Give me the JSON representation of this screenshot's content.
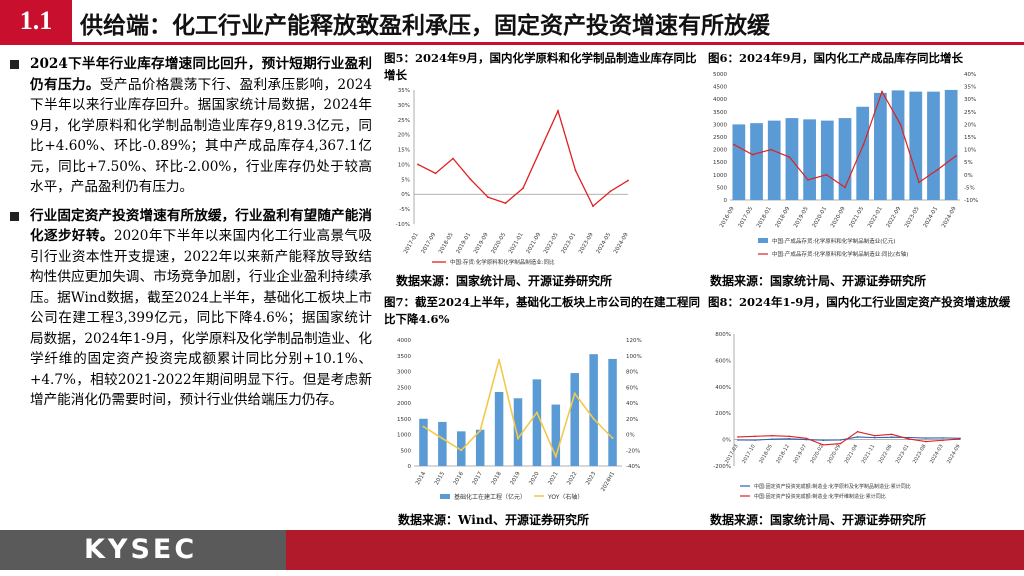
{
  "header": {
    "section_number": "1.1",
    "title": "供给端：化工行业产能释放致盈利承压，固定资产投资增速有所放缓"
  },
  "left_text": {
    "p1_bold": "2024下半年行业库存增速同比回升，预计短期行业盈利仍有压力。",
    "p1_rest": "受产品价格震荡下行、盈利承压影响，2024下半年以来行业库存回升。据国家统计局数据，2024年9月，化学原料和化学制品制造业库存9,819.3亿元，同比+4.60%、环比-0.89%；其中产成品库存4,367.1亿元，同比+7.50%、环比-2.00%，行业库存仍处于较高水平，产品盈利仍有压力。",
    "p2_bold": "行业固定资产投资增速有所放缓，行业盈利有望随产能消化逐步好转。",
    "p2_rest": "2020年下半年以来国内化工行业高景气吸引行业资本性开支提速，2022年以来新产能释放导致结构性供应更加失调、市场竞争加剧，行业企业盈利持续承压。据Wind数据，截至2024上半年，基础化工板块上市公司在建工程3,399亿元，同比下降4.6%；据国家统计局数据，2024年1-9月，化学原料及化学制品制造业、化学纤维的固定资产投资完成额累计同比分别+10.1%、+4.7%，相较2021-2022年期间明显下行。但是考虑新增产能消化仍需要时间，预计行业供给端压力仍存。"
  },
  "figures": {
    "fig5": {
      "title": "图5：2024年9月，国内化学原料和化学制品制造业库存同比增长",
      "source": "数据来源：国家统计局、开源证券研究所",
      "legend": "中国:存货:化学原料和化学制品制造业:同比"
    },
    "fig6": {
      "title": "图6：2024年9月，国内化工产成品库存同比增长",
      "source": "数据来源：国家统计局、开源证券研究所",
      "legend_bar": "中国:产成品存货:化学原料和化学制品制造业(亿元)",
      "legend_line": "中国:产成品存货:化学原料和化学制品制造业:同比(右轴)"
    },
    "fig7": {
      "title": "图7：截至2024上半年，基础化工板块上市公司的在建工程同比下降4.6%",
      "source": "数据来源：Wind、开源证券研究所",
      "legend_bar": "基础化工在建工程（亿元）",
      "legend_line": "YOY（右轴）"
    },
    "fig8": {
      "title": "图8：2024年1-9月，国内化工行业固定资产投资增速放缓",
      "source": "数据来源：国家统计局、开源证券研究所",
      "legend_a": "中国:固定资产投资完成额:制造业:化学原料及化学制品制造业:累计同比",
      "legend_b": "中国:固定资产投资完成额:制造业:化学纤维制造业:累计同比"
    }
  },
  "chart_data": [
    {
      "id": "fig5",
      "type": "line",
      "x": [
        "2017-01",
        "2017-09",
        "2018-05",
        "2019-01",
        "2019-09",
        "2020-05",
        "2021-01",
        "2021-09",
        "2022-05",
        "2023-01",
        "2023-09",
        "2024-05",
        "2024-09"
      ],
      "series": [
        {
          "name": "中国:存货:化学原料和化学制品制造业:同比",
          "values": [
            10,
            7,
            12,
            5,
            -1,
            -3,
            2,
            15,
            28,
            8,
            -4,
            1,
            4.6
          ]
        }
      ],
      "ylim": [
        -10,
        35
      ],
      "yticks": [
        "-10%",
        "-5%",
        "0%",
        "5%",
        "10%",
        "15%",
        "20%",
        "25%",
        "30%",
        "35%"
      ],
      "xticks": [
        "2017-01",
        "2017-09",
        "2018-05",
        "2019-01",
        "2019-09",
        "2020-05",
        "2021-01",
        "2021-09",
        "2022-05",
        "2023-01",
        "2023-09",
        "2024-05",
        "2024-09"
      ]
    },
    {
      "id": "fig6",
      "type": "bar",
      "x": [
        "2016-09",
        "2017-05",
        "2018-01",
        "2018-09",
        "2019-05",
        "2020-01",
        "2020-09",
        "2021-05",
        "2022-01",
        "2022-09",
        "2023-05",
        "2024-01",
        "2024-09"
      ],
      "series": [
        {
          "name": "中国:产成品存货:化学原料和化学制品制造业(亿元)",
          "values": [
            3000,
            3050,
            3150,
            3250,
            3200,
            3150,
            3250,
            3700,
            4250,
            4350,
            4300,
            4300,
            4367.1
          ]
        },
        {
          "name": "中国:产成品存货:化学原料和化学制品制造业:同比(右轴)",
          "values": [
            12,
            8,
            10,
            7,
            -2,
            0,
            -5,
            12,
            33,
            20,
            -3,
            2,
            7.5
          ]
        }
      ],
      "ylim": [
        0,
        5000
      ],
      "y2lim": [
        -10,
        40
      ],
      "yticks": [
        "0",
        "500",
        "1000",
        "1500",
        "2000",
        "2500",
        "3000",
        "3500",
        "4000",
        "4500",
        "5000"
      ],
      "y2ticks": [
        "-10%",
        "-5%",
        "0%",
        "5%",
        "10%",
        "15%",
        "20%",
        "25%",
        "30%",
        "35%",
        "40%"
      ],
      "xticks": [
        "2016-09",
        "2017-05",
        "2018-01",
        "2018-09",
        "2019-05",
        "2020-01",
        "2020-09",
        "2021-05",
        "2022-01",
        "2022-09",
        "2023-05",
        "2024-01",
        "2024-09"
      ]
    },
    {
      "id": "fig7",
      "type": "bar",
      "categories": [
        "2014",
        "2015",
        "2016",
        "2017",
        "2018",
        "2019",
        "2020",
        "2021",
        "2022",
        "2023",
        "2024H1"
      ],
      "series": [
        {
          "name": "基础化工在建工程（亿元）",
          "values": [
            1500,
            1400,
            1100,
            1150,
            2350,
            2150,
            2750,
            1950,
            2950,
            3550,
            3399
          ]
        },
        {
          "name": "YOY（右轴）",
          "values": [
            10,
            -5,
            -20,
            5,
            95,
            -5,
            28,
            -28,
            52,
            20,
            -4.6
          ]
        }
      ],
      "ylim": [
        0,
        4000
      ],
      "y2lim": [
        -40,
        120
      ],
      "yticks": [
        "0",
        "500",
        "1000",
        "1500",
        "2000",
        "2500",
        "3000",
        "3500",
        "4000"
      ],
      "y2ticks": [
        "-40%",
        "-20%",
        "0%",
        "20%",
        "40%",
        "60%",
        "80%",
        "100%",
        "120%"
      ]
    },
    {
      "id": "fig8",
      "type": "line",
      "x": [
        "2017-03",
        "2017-10",
        "2018-05",
        "2018-12",
        "2019-07",
        "2020-02",
        "2020-09",
        "2021-04",
        "2021-11",
        "2022-06",
        "2023-01",
        "2023-08",
        "2024-03",
        "2024-09"
      ],
      "series": [
        {
          "name": "中国:固定资产投资完成额:制造业:化学原料及化学制品制造业:累计同比",
          "values": [
            -3,
            -4,
            3,
            6,
            0,
            -5,
            -3,
            20,
            15,
            18,
            16,
            12,
            13,
            10.1
          ]
        },
        {
          "name": "中国:固定资产投资完成额:制造业:化学纤维制造业:累计同比",
          "values": [
            20,
            25,
            30,
            25,
            10,
            -40,
            -30,
            60,
            30,
            40,
            5,
            -15,
            -5,
            4.7
          ]
        }
      ],
      "ylim": [
        -200,
        800
      ],
      "yticks": [
        "-200%",
        "0%",
        "200%",
        "400%",
        "600%",
        "800%"
      ]
    }
  ],
  "footer": {
    "logo": "KYSEC"
  },
  "colors": {
    "accent": "#c8102e",
    "footer_red": "#b01a2b",
    "footer_gray": "#5a5a5a",
    "bar_blue": "#5b9bd5",
    "line_red": "#e02020",
    "line_gold": "#f2c94c"
  }
}
